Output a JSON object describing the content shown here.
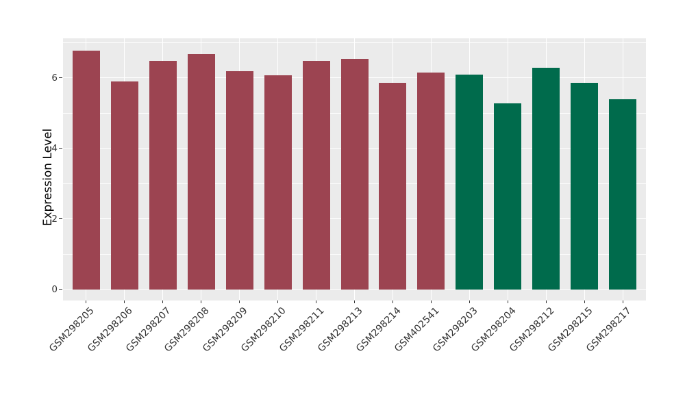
{
  "chart_data": {
    "type": "bar",
    "title": "",
    "xlabel": "",
    "ylabel": "Expression Level",
    "categories": [
      "GSM298205",
      "GSM298206",
      "GSM298207",
      "GSM298208",
      "GSM298209",
      "GSM298210",
      "GSM298211",
      "GSM298213",
      "GSM298214",
      "GSM402541",
      "GSM298203",
      "GSM298204",
      "GSM298212",
      "GSM298215",
      "GSM298217"
    ],
    "values": [
      6.78,
      5.89,
      6.48,
      6.68,
      6.18,
      6.07,
      6.48,
      6.53,
      5.86,
      6.15,
      6.1,
      5.27,
      6.29,
      5.86,
      5.39
    ],
    "bar_colors": [
      "#9c4451",
      "#9c4451",
      "#9c4451",
      "#9c4451",
      "#9c4451",
      "#9c4451",
      "#9c4451",
      "#9c4451",
      "#9c4451",
      "#9c4451",
      "#006b4c",
      "#006b4c",
      "#006b4c",
      "#006b4c",
      "#006b4c"
    ],
    "color_groups": [
      {
        "color": "#9c4451",
        "count": 10
      },
      {
        "color": "#006b4c",
        "count": 5
      }
    ],
    "ylim": [
      0,
      7.12
    ],
    "yticks": [
      0,
      2,
      4,
      6
    ],
    "ytick_labels": [
      "0",
      "2",
      "4",
      "6"
    ],
    "minor_yticks": [
      1,
      3,
      5,
      7
    ],
    "x_tick_rotation_deg": 45,
    "grid": "white major and minor gridlines on gray panel",
    "legend_position": "none"
  },
  "style": {
    "panel_background": "#ebebeb",
    "grid_color": "#ffffff",
    "red_group_color": "#9c4451",
    "green_group_color": "#006b4c",
    "tick_label_color": "#333333",
    "axis_title_color": "#000000",
    "figure_background": "#ffffff"
  }
}
